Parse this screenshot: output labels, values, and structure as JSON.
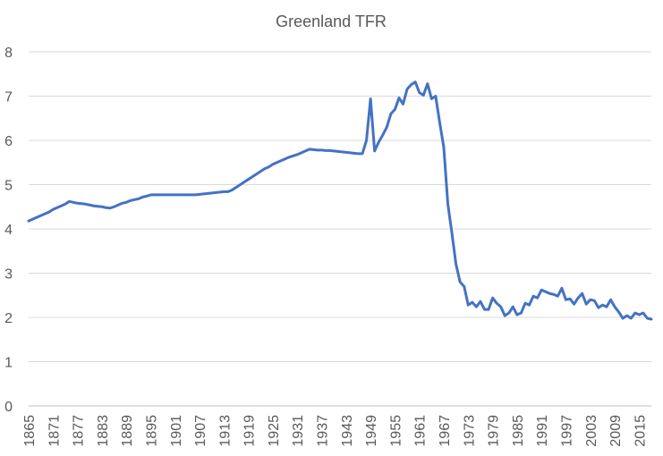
{
  "chart_data": {
    "type": "line",
    "title": "Greenland TFR",
    "xlabel": "",
    "ylabel": "",
    "ylim": [
      0,
      8
    ],
    "yticks": [
      0,
      1,
      2,
      3,
      4,
      5,
      6,
      7,
      8
    ],
    "xlim": [
      1865,
      2018
    ],
    "xticks": [
      1865,
      1871,
      1877,
      1883,
      1889,
      1895,
      1901,
      1907,
      1913,
      1919,
      1925,
      1931,
      1937,
      1943,
      1949,
      1955,
      1961,
      1967,
      1973,
      1979,
      1985,
      1991,
      1997,
      2003,
      2009,
      2015
    ],
    "grid": true,
    "line_color": "#4472C4",
    "series": [
      {
        "name": "Greenland TFR",
        "x": [
          1865,
          1866,
          1867,
          1868,
          1869,
          1870,
          1871,
          1872,
          1873,
          1874,
          1875,
          1876,
          1877,
          1878,
          1879,
          1880,
          1881,
          1882,
          1883,
          1884,
          1885,
          1886,
          1887,
          1888,
          1889,
          1890,
          1891,
          1892,
          1893,
          1894,
          1895,
          1896,
          1897,
          1898,
          1899,
          1900,
          1901,
          1902,
          1903,
          1904,
          1905,
          1906,
          1907,
          1908,
          1909,
          1910,
          1911,
          1912,
          1913,
          1914,
          1915,
          1916,
          1917,
          1918,
          1919,
          1920,
          1921,
          1922,
          1923,
          1924,
          1925,
          1926,
          1927,
          1928,
          1929,
          1930,
          1931,
          1932,
          1933,
          1934,
          1935,
          1936,
          1937,
          1938,
          1939,
          1940,
          1941,
          1942,
          1943,
          1944,
          1945,
          1946,
          1947,
          1948,
          1949,
          1950,
          1951,
          1952,
          1953,
          1954,
          1955,
          1956,
          1957,
          1958,
          1959,
          1960,
          1961,
          1962,
          1963,
          1964,
          1965,
          1966,
          1967,
          1968,
          1969,
          1970,
          1971,
          1972,
          1973,
          1974,
          1975,
          1976,
          1977,
          1978,
          1979,
          1980,
          1981,
          1982,
          1983,
          1984,
          1985,
          1986,
          1987,
          1988,
          1989,
          1990,
          1991,
          1992,
          1993,
          1994,
          1995,
          1996,
          1997,
          1998,
          1999,
          2000,
          2001,
          2002,
          2003,
          2004,
          2005,
          2006,
          2007,
          2008,
          2009,
          2010,
          2011,
          2012,
          2013,
          2014,
          2015,
          2016,
          2017,
          2018
        ],
        "values": [
          4.18,
          4.22,
          4.26,
          4.3,
          4.34,
          4.38,
          4.44,
          4.48,
          4.52,
          4.56,
          4.62,
          4.6,
          4.58,
          4.57,
          4.56,
          4.54,
          4.52,
          4.51,
          4.5,
          4.48,
          4.47,
          4.5,
          4.54,
          4.58,
          4.6,
          4.64,
          4.66,
          4.68,
          4.72,
          4.74,
          4.77,
          4.77,
          4.77,
          4.77,
          4.77,
          4.77,
          4.77,
          4.77,
          4.77,
          4.77,
          4.77,
          4.77,
          4.78,
          4.79,
          4.8,
          4.81,
          4.82,
          4.83,
          4.84,
          4.84,
          4.88,
          4.94,
          5.0,
          5.06,
          5.12,
          5.18,
          5.24,
          5.3,
          5.36,
          5.4,
          5.46,
          5.5,
          5.54,
          5.58,
          5.62,
          5.65,
          5.68,
          5.72,
          5.76,
          5.8,
          5.79,
          5.78,
          5.78,
          5.77,
          5.77,
          5.76,
          5.75,
          5.74,
          5.73,
          5.72,
          5.71,
          5.7,
          5.7,
          6.0,
          6.94,
          5.76,
          5.96,
          6.12,
          6.3,
          6.6,
          6.7,
          6.96,
          6.82,
          7.16,
          7.26,
          7.32,
          7.08,
          7.02,
          7.28,
          6.94,
          7.0,
          6.4,
          5.84,
          4.56,
          3.9,
          3.2,
          2.8,
          2.7,
          2.28,
          2.34,
          2.24,
          2.36,
          2.18,
          2.18,
          2.44,
          2.32,
          2.24,
          2.04,
          2.1,
          2.24,
          2.06,
          2.1,
          2.32,
          2.28,
          2.48,
          2.44,
          2.62,
          2.58,
          2.54,
          2.52,
          2.48,
          2.66,
          2.4,
          2.42,
          2.3,
          2.44,
          2.54,
          2.3,
          2.4,
          2.38,
          2.22,
          2.28,
          2.24,
          2.4,
          2.24,
          2.12,
          1.98,
          2.04,
          1.98,
          2.1,
          2.06,
          2.1,
          1.98,
          1.96
        ]
      }
    ]
  }
}
